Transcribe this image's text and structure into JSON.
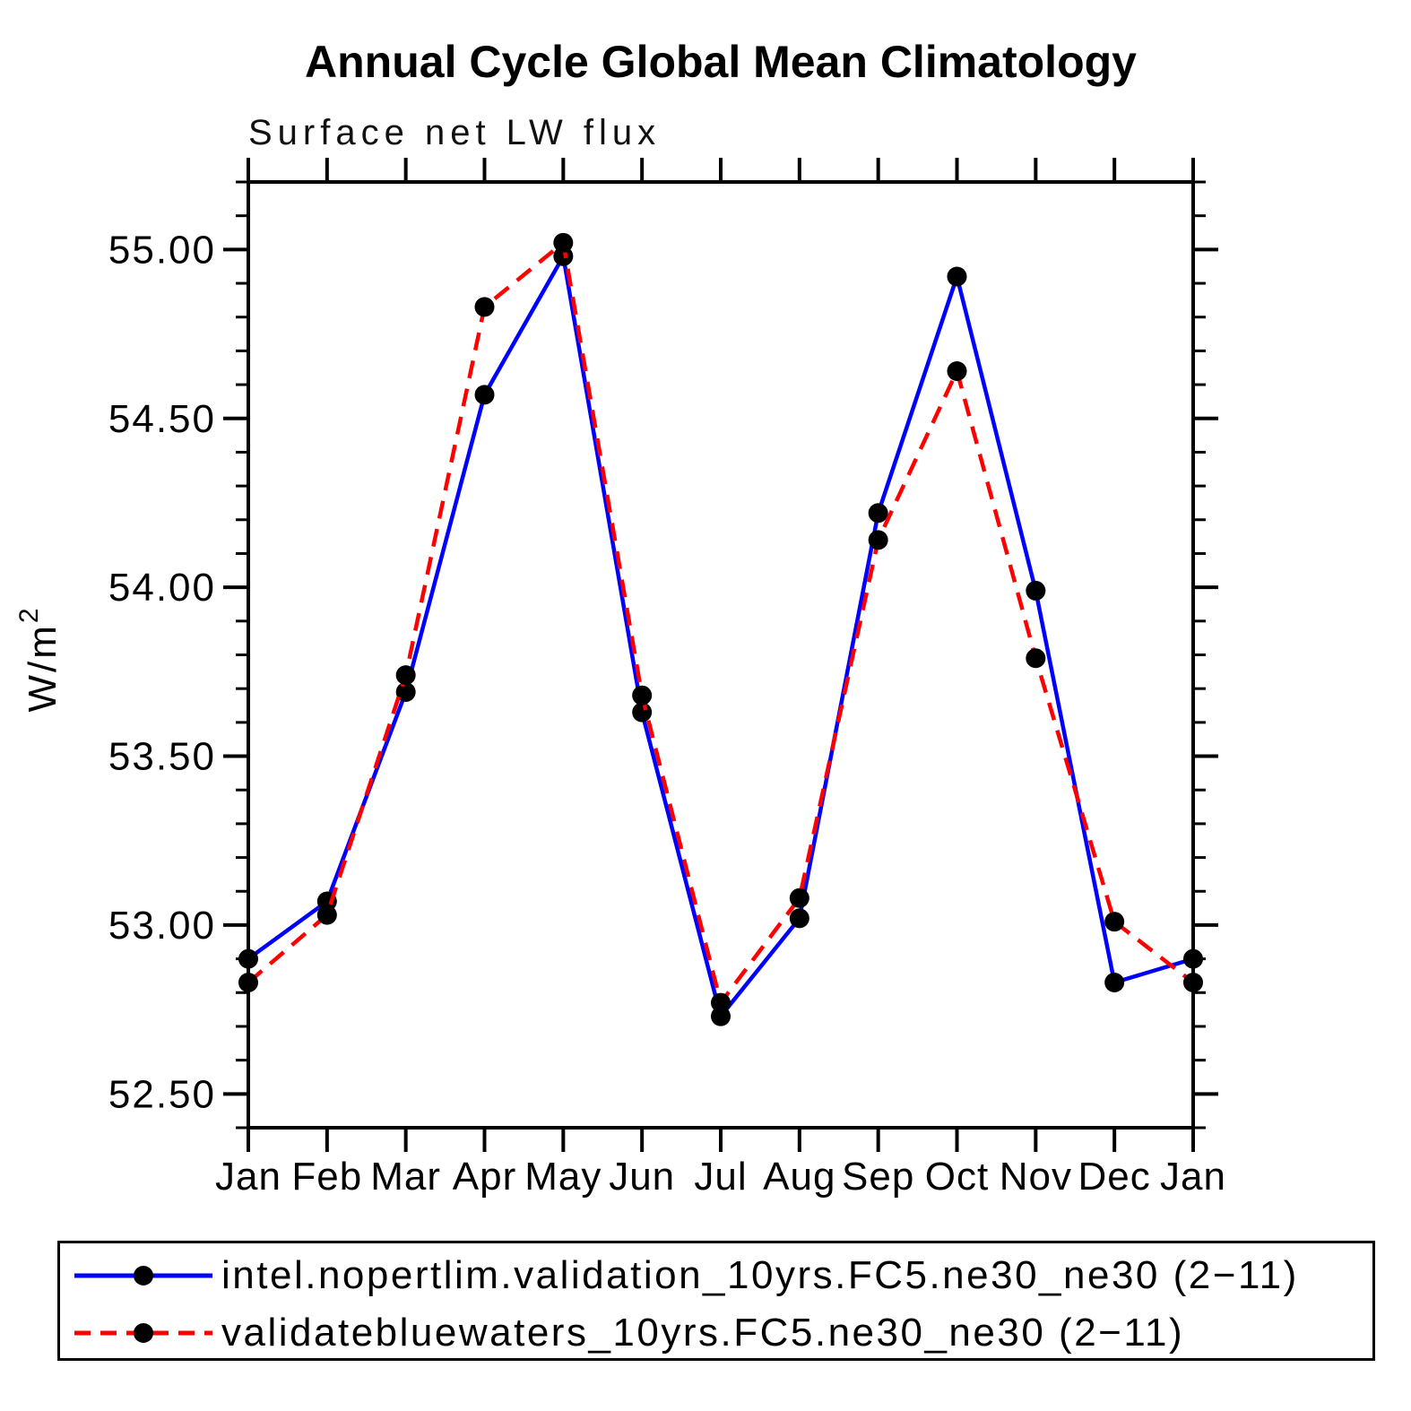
{
  "header": {
    "title": "Annual Cycle Global Mean Climatology"
  },
  "chart_data": {
    "type": "line",
    "title": "Annual Cycle Global Mean Climatology",
    "subtitle": "Surface net LW flux",
    "ylabel": "W/m²",
    "ylabel_base": "W/m",
    "ylabel_exponent": "2",
    "categories": [
      "Jan",
      "Feb",
      "Mar",
      "Apr",
      "May",
      "Jun",
      "Jul",
      "Aug",
      "Sep",
      "Oct",
      "Nov",
      "Dec",
      "Jan"
    ],
    "series": [
      {
        "name": "intel.nopertlim.validation_10yrs.FC5.ne30_ne30 (2−11)",
        "color": "#0000ff",
        "line_style": "solid",
        "marker": "filled-circle",
        "marker_color": "#000000",
        "values": [
          52.9,
          53.07,
          53.69,
          54.57,
          54.98,
          53.63,
          52.73,
          53.02,
          54.22,
          54.92,
          53.99,
          52.83,
          52.9
        ]
      },
      {
        "name": "validatebluewaters_10yrs.FC5.ne30_ne30 (2−11)",
        "color": "#ff0000",
        "line_style": "dashed",
        "marker": "filled-circle",
        "marker_color": "#000000",
        "values": [
          52.83,
          53.03,
          53.74,
          54.83,
          55.02,
          53.68,
          52.77,
          53.08,
          54.14,
          54.64,
          53.79,
          53.01,
          52.83
        ]
      }
    ],
    "ylim": [
      52.4,
      55.2
    ],
    "yticks_major": [
      52.5,
      53.0,
      53.5,
      54.0,
      54.5,
      55.0
    ],
    "ytick_labels": [
      "52.50",
      "53.00",
      "53.50",
      "54.00",
      "54.50",
      "55.00"
    ],
    "yticks_minor_step": 0.1,
    "xtick_every_month": true,
    "grid": false,
    "legend_position": "bottom",
    "axis_color": "#000000",
    "background": "#ffffff"
  }
}
